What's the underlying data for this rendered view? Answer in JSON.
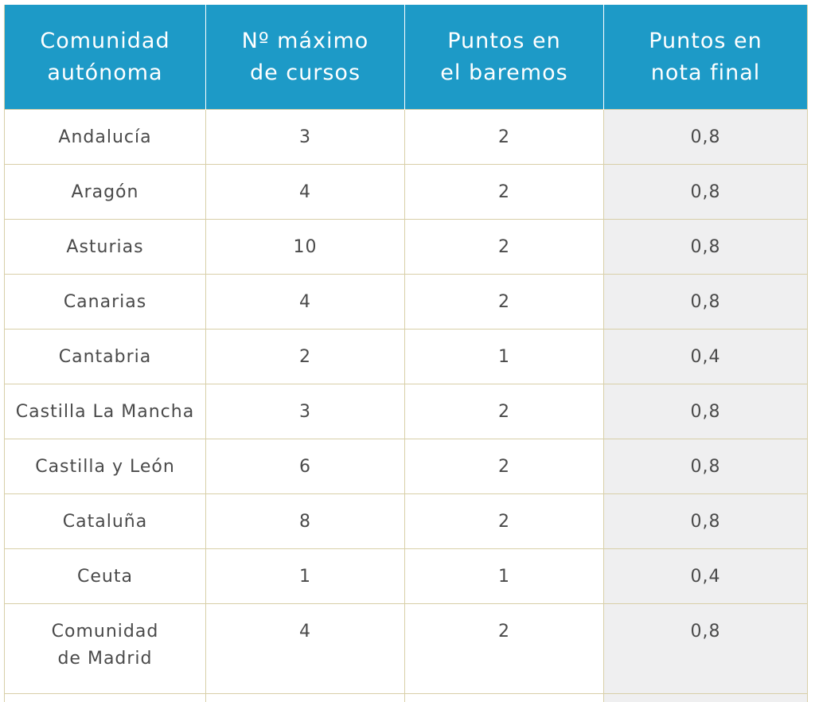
{
  "table": {
    "headers": [
      "Comunidad\nautónoma",
      "Nº máximo\nde cursos",
      "Puntos en\nel baremos",
      "Puntos en\nnota final"
    ],
    "rows": [
      {
        "comunidad": "Andalucía",
        "max_cursos": "3",
        "puntos_baremos": "2",
        "puntos_nota": "0,8"
      },
      {
        "comunidad": "Aragón",
        "max_cursos": "4",
        "puntos_baremos": "2",
        "puntos_nota": "0,8"
      },
      {
        "comunidad": "Asturias",
        "max_cursos": "10",
        "puntos_baremos": "2",
        "puntos_nota": "0,8"
      },
      {
        "comunidad": "Canarias",
        "max_cursos": "4",
        "puntos_baremos": "2",
        "puntos_nota": "0,8"
      },
      {
        "comunidad": "Cantabria",
        "max_cursos": "2",
        "puntos_baremos": "1",
        "puntos_nota": "0,4"
      },
      {
        "comunidad": "Castilla La Mancha",
        "max_cursos": "3",
        "puntos_baremos": "2",
        "puntos_nota": "0,8"
      },
      {
        "comunidad": "Castilla y León",
        "max_cursos": "6",
        "puntos_baremos": "2",
        "puntos_nota": "0,8"
      },
      {
        "comunidad": "Cataluña",
        "max_cursos": "8",
        "puntos_baremos": "2",
        "puntos_nota": "0,8"
      },
      {
        "comunidad": "Ceuta",
        "max_cursos": "1",
        "puntos_baremos": "1",
        "puntos_nota": "0,4"
      },
      {
        "comunidad": "Comunidad\nde Madrid",
        "max_cursos": "4",
        "puntos_baremos": "2",
        "puntos_nota": "0,8"
      }
    ]
  },
  "colors": {
    "header_bg": "#1d9ac7",
    "header_text": "#ffffff",
    "grid_line": "#d8cfa8",
    "shaded_column": "#efeff0",
    "body_text": "#4a4a4a"
  }
}
